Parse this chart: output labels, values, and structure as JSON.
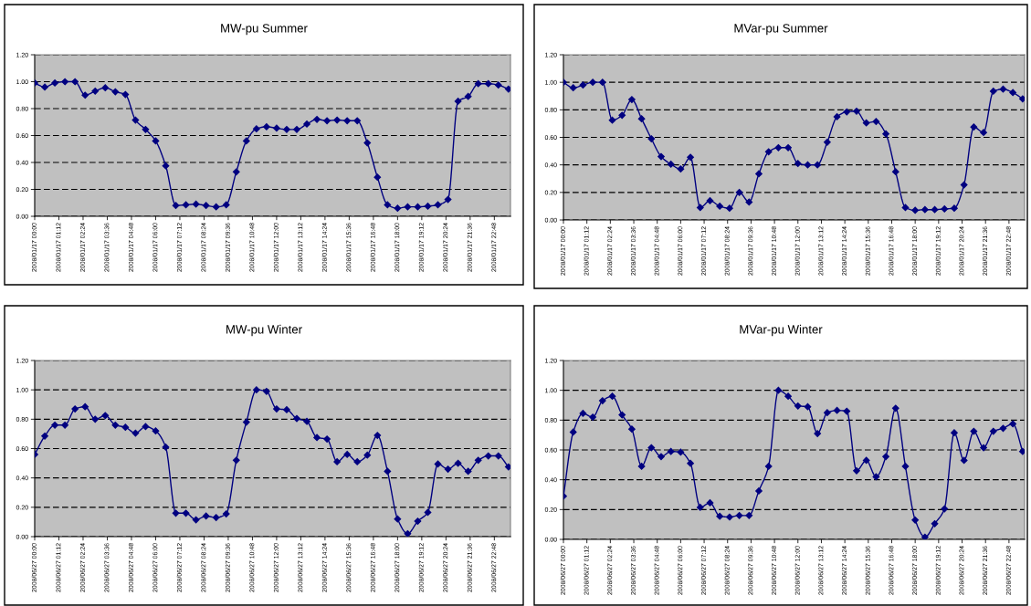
{
  "chart_data": [
    {
      "type": "line",
      "title": "MW-pu Summer",
      "grid": "y",
      "marker": "diamond",
      "x": [
        "2008-01-17T00:00",
        "2008-01-17T00:30",
        "2008-01-17T01:00",
        "2008-01-17T01:30",
        "2008-01-17T02:00",
        "2008-01-17T02:30",
        "2008-01-17T03:00",
        "2008-01-17T03:30",
        "2008-01-17T04:00",
        "2008-01-17T04:30",
        "2008-01-17T05:00",
        "2008-01-17T05:30",
        "2008-01-17T06:00",
        "2008-01-17T06:30",
        "2008-01-17T07:00",
        "2008-01-17T07:30",
        "2008-01-17T08:00",
        "2008-01-17T08:30",
        "2008-01-17T09:00",
        "2008-01-17T09:30",
        "2008-01-17T10:00",
        "2008-01-17T10:30",
        "2008-01-17T11:00",
        "2008-01-17T11:30",
        "2008-01-17T12:00",
        "2008-01-17T12:30",
        "2008-01-17T13:00",
        "2008-01-17T13:30",
        "2008-01-17T14:00",
        "2008-01-17T14:30",
        "2008-01-17T15:00",
        "2008-01-17T15:30",
        "2008-01-17T16:00",
        "2008-01-17T16:30",
        "2008-01-17T17:00",
        "2008-01-17T17:30",
        "2008-01-17T18:00",
        "2008-01-17T18:30",
        "2008-01-17T19:00",
        "2008-01-17T19:30",
        "2008-01-17T20:00",
        "2008-01-17T20:30",
        "2008-01-17T21:00",
        "2008-01-17T21:30",
        "2008-01-17T22:00",
        "2008-01-17T22:30",
        "2008-01-17T23:00",
        "2008-01-17T23:30"
      ],
      "xlim": [
        "2008-01-17T00:00",
        "2008-01-17T23:36"
      ],
      "xticks": [
        {
          "value": "2008-01-17T00:00",
          "label": "2008/01/17 00:00"
        },
        {
          "value": "2008-01-17T01:12",
          "label": "2008/01/17 01:12"
        },
        {
          "value": "2008-01-17T02:24",
          "label": "2008/01/17 02:24"
        },
        {
          "value": "2008-01-17T03:36",
          "label": "2008/01/17 03:36"
        },
        {
          "value": "2008-01-17T04:48",
          "label": "2008/01/17 04:48"
        },
        {
          "value": "2008-01-17T06:00",
          "label": "2008/01/17 06:00"
        },
        {
          "value": "2008-01-17T07:12",
          "label": "2008/01/17 07:12"
        },
        {
          "value": "2008-01-17T08:24",
          "label": "2008/01/17 08:24"
        },
        {
          "value": "2008-01-17T09:36",
          "label": "2008/01/17 09:36"
        },
        {
          "value": "2008-01-17T10:48",
          "label": "2008/01/17 10:48"
        },
        {
          "value": "2008-01-17T12:00",
          "label": "2008/01/17 12:00"
        },
        {
          "value": "2008-01-17T13:12",
          "label": "2008/01/17 13:12"
        },
        {
          "value": "2008-01-17T14:24",
          "label": "2008/01/17 14:24"
        },
        {
          "value": "2008-01-17T15:36",
          "label": "2008/01/17 15:36"
        },
        {
          "value": "2008-01-17T16:48",
          "label": "2008/01/17 16:48"
        },
        {
          "value": "2008-01-17T18:00",
          "label": "2008/01/17 18:00"
        },
        {
          "value": "2008-01-17T19:12",
          "label": "2008/01/17 19:12"
        },
        {
          "value": "2008-01-17T20:24",
          "label": "2008/01/17 20:24"
        },
        {
          "value": "2008-01-17T21:36",
          "label": "2008/01/17 21:36"
        },
        {
          "value": "2008-01-17T22:48",
          "label": "2008/01/17 22:48"
        }
      ],
      "ylim": [
        0,
        1.2
      ],
      "yticks": [
        {
          "value": 0,
          "label": "0.00"
        },
        {
          "value": 0.2,
          "label": "0.20"
        },
        {
          "value": 0.4,
          "label": "0.40"
        },
        {
          "value": 0.6,
          "label": "0.60"
        },
        {
          "value": 0.8,
          "label": "0.80"
        },
        {
          "value": 1,
          "label": "1.00"
        },
        {
          "value": 1.2,
          "label": "1.20"
        }
      ],
      "series": [
        {
          "color": "#000080",
          "values": [
            0.99,
            0.96,
            0.99,
            1.0,
            1.0,
            0.9,
            0.93,
            0.955,
            0.925,
            0.905,
            0.715,
            0.645,
            0.56,
            0.375,
            0.08,
            0.085,
            0.09,
            0.08,
            0.07,
            0.085,
            0.33,
            0.56,
            0.65,
            0.665,
            0.655,
            0.645,
            0.645,
            0.685,
            0.72,
            0.71,
            0.715,
            0.71,
            0.71,
            0.545,
            0.29,
            0.085,
            0.06,
            0.07,
            0.07,
            0.075,
            0.085,
            0.125,
            0.855,
            0.89,
            0.985,
            0.985,
            0.975,
            0.945
          ]
        }
      ]
    },
    {
      "type": "line",
      "title": "MVar-pu Summer",
      "grid": "y",
      "marker": "diamond",
      "x": [
        "2008-01-17T00:00",
        "2008-01-17T00:30",
        "2008-01-17T01:00",
        "2008-01-17T01:30",
        "2008-01-17T02:00",
        "2008-01-17T02:30",
        "2008-01-17T03:00",
        "2008-01-17T03:30",
        "2008-01-17T04:00",
        "2008-01-17T04:30",
        "2008-01-17T05:00",
        "2008-01-17T05:30",
        "2008-01-17T06:00",
        "2008-01-17T06:30",
        "2008-01-17T07:00",
        "2008-01-17T07:30",
        "2008-01-17T08:00",
        "2008-01-17T08:30",
        "2008-01-17T09:00",
        "2008-01-17T09:30",
        "2008-01-17T10:00",
        "2008-01-17T10:30",
        "2008-01-17T11:00",
        "2008-01-17T11:30",
        "2008-01-17T12:00",
        "2008-01-17T12:30",
        "2008-01-17T13:00",
        "2008-01-17T13:30",
        "2008-01-17T14:00",
        "2008-01-17T14:30",
        "2008-01-17T15:00",
        "2008-01-17T15:30",
        "2008-01-17T16:00",
        "2008-01-17T16:30",
        "2008-01-17T17:00",
        "2008-01-17T17:30",
        "2008-01-17T18:00",
        "2008-01-17T18:30",
        "2008-01-17T19:00",
        "2008-01-17T19:30",
        "2008-01-17T20:00",
        "2008-01-17T20:30",
        "2008-01-17T21:00",
        "2008-01-17T21:30",
        "2008-01-17T22:00",
        "2008-01-17T22:30",
        "2008-01-17T23:00",
        "2008-01-17T23:30"
      ],
      "xlim": [
        "2008-01-17T00:00",
        "2008-01-17T23:36"
      ],
      "xticks": [
        {
          "value": "2008-01-17T00:00",
          "label": "2008/01/17 00:00"
        },
        {
          "value": "2008-01-17T01:12",
          "label": "2008/01/17 01:12"
        },
        {
          "value": "2008-01-17T02:24",
          "label": "2008/01/17 02:24"
        },
        {
          "value": "2008-01-17T03:36",
          "label": "2008/01/17 03:36"
        },
        {
          "value": "2008-01-17T04:48",
          "label": "2008/01/17 04:48"
        },
        {
          "value": "2008-01-17T06:00",
          "label": "2008/01/17 06:00"
        },
        {
          "value": "2008-01-17T07:12",
          "label": "2008/01/17 07:12"
        },
        {
          "value": "2008-01-17T08:24",
          "label": "2008/01/17 08:24"
        },
        {
          "value": "2008-01-17T09:36",
          "label": "2008/01/17 09:36"
        },
        {
          "value": "2008-01-17T10:48",
          "label": "2008/01/17 10:48"
        },
        {
          "value": "2008-01-17T12:00",
          "label": "2008/01/17 12:00"
        },
        {
          "value": "2008-01-17T13:12",
          "label": "2008/01/17 13:12"
        },
        {
          "value": "2008-01-17T14:24",
          "label": "2008/01/17 14:24"
        },
        {
          "value": "2008-01-17T15:36",
          "label": "2008/01/17 15:36"
        },
        {
          "value": "2008-01-17T16:48",
          "label": "2008/01/17 16:48"
        },
        {
          "value": "2008-01-17T18:00",
          "label": "2008/01/17 18:00"
        },
        {
          "value": "2008-01-17T19:12",
          "label": "2008/01/17 19:12"
        },
        {
          "value": "2008-01-17T20:24",
          "label": "2008/01/17 20:24"
        },
        {
          "value": "2008-01-17T21:36",
          "label": "2008/01/17 21:36"
        },
        {
          "value": "2008-01-17T22:48",
          "label": "2008/01/17 22:48"
        }
      ],
      "ylim": [
        0,
        1.2
      ],
      "yticks": [
        {
          "value": 0,
          "label": "0.00"
        },
        {
          "value": 0.2,
          "label": "0.20"
        },
        {
          "value": 0.4,
          "label": "0.40"
        },
        {
          "value": 0.6,
          "label": "0.60"
        },
        {
          "value": 0.8,
          "label": "0.80"
        },
        {
          "value": 1,
          "label": "1.00"
        },
        {
          "value": 1.2,
          "label": "1.20"
        }
      ],
      "series": [
        {
          "color": "#000080",
          "values": [
            1.0,
            0.96,
            0.98,
            1.0,
            1.0,
            0.725,
            0.76,
            0.875,
            0.735,
            0.59,
            0.46,
            0.405,
            0.37,
            0.455,
            0.09,
            0.14,
            0.1,
            0.085,
            0.2,
            0.13,
            0.335,
            0.495,
            0.525,
            0.525,
            0.41,
            0.4,
            0.4,
            0.565,
            0.75,
            0.785,
            0.79,
            0.705,
            0.715,
            0.625,
            0.35,
            0.09,
            0.07,
            0.075,
            0.075,
            0.08,
            0.085,
            0.255,
            0.675,
            0.635,
            0.935,
            0.95,
            0.925,
            0.88
          ]
        }
      ]
    },
    {
      "type": "line",
      "title": "MW-pu Winter",
      "grid": "y",
      "marker": "diamond",
      "x": [
        "2008-06-27T00:00",
        "2008-06-27T00:30",
        "2008-06-27T01:00",
        "2008-06-27T01:30",
        "2008-06-27T02:00",
        "2008-06-27T02:30",
        "2008-06-27T03:00",
        "2008-06-27T03:30",
        "2008-06-27T04:00",
        "2008-06-27T04:30",
        "2008-06-27T05:00",
        "2008-06-27T05:30",
        "2008-06-27T06:00",
        "2008-06-27T06:30",
        "2008-06-27T07:00",
        "2008-06-27T07:30",
        "2008-06-27T08:00",
        "2008-06-27T08:30",
        "2008-06-27T09:00",
        "2008-06-27T09:30",
        "2008-06-27T10:00",
        "2008-06-27T10:30",
        "2008-06-27T11:00",
        "2008-06-27T11:30",
        "2008-06-27T12:00",
        "2008-06-27T12:30",
        "2008-06-27T13:00",
        "2008-06-27T13:30",
        "2008-06-27T14:00",
        "2008-06-27T14:30",
        "2008-06-27T15:00",
        "2008-06-27T15:30",
        "2008-06-27T16:00",
        "2008-06-27T16:30",
        "2008-06-27T17:00",
        "2008-06-27T17:30",
        "2008-06-27T18:00",
        "2008-06-27T18:30",
        "2008-06-27T19:00",
        "2008-06-27T19:30",
        "2008-06-27T20:00",
        "2008-06-27T20:30",
        "2008-06-27T21:00",
        "2008-06-27T21:30",
        "2008-06-27T22:00",
        "2008-06-27T22:30",
        "2008-06-27T23:00",
        "2008-06-27T23:30"
      ],
      "xlim": [
        "2008-06-27T00:00",
        "2008-06-27T23:36"
      ],
      "xticks": [
        {
          "value": "2008-06-27T00:00",
          "label": "2008/06/27 00:00"
        },
        {
          "value": "2008-06-27T01:12",
          "label": "2008/06/27 01:12"
        },
        {
          "value": "2008-06-27T02:24",
          "label": "2008/06/27 02:24"
        },
        {
          "value": "2008-06-27T03:36",
          "label": "2008/06/27 03:36"
        },
        {
          "value": "2008-06-27T04:48",
          "label": "2008/06/27 04:48"
        },
        {
          "value": "2008-06-27T06:00",
          "label": "2008/06/27 06:00"
        },
        {
          "value": "2008-06-27T07:12",
          "label": "2008/06/27 07:12"
        },
        {
          "value": "2008-06-27T08:24",
          "label": "2008/06/27 08:24"
        },
        {
          "value": "2008-06-27T09:36",
          "label": "2008/06/27 09:36"
        },
        {
          "value": "2008-06-27T10:48",
          "label": "2008/06/27 10:48"
        },
        {
          "value": "2008-06-27T12:00",
          "label": "2008/06/27 12:00"
        },
        {
          "value": "2008-06-27T13:12",
          "label": "2008/06/27 13:12"
        },
        {
          "value": "2008-06-27T14:24",
          "label": "2008/06/27 14:24"
        },
        {
          "value": "2008-06-27T15:36",
          "label": "2008/06/27 15:36"
        },
        {
          "value": "2008-06-27T16:48",
          "label": "2008/06/27 16:48"
        },
        {
          "value": "2008-06-27T18:00",
          "label": "2008/06/27 18:00"
        },
        {
          "value": "2008-06-27T19:12",
          "label": "2008/06/27 19:12"
        },
        {
          "value": "2008-06-27T20:24",
          "label": "2008/06/27 20:24"
        },
        {
          "value": "2008-06-27T21:36",
          "label": "2008/06/27 21:36"
        },
        {
          "value": "2008-06-27T22:48",
          "label": "2008/06/27 22:48"
        }
      ],
      "ylim": [
        0,
        1.2
      ],
      "yticks": [
        {
          "value": 0,
          "label": "0.00"
        },
        {
          "value": 0.2,
          "label": "0.20"
        },
        {
          "value": 0.4,
          "label": "0.40"
        },
        {
          "value": 0.6,
          "label": "0.60"
        },
        {
          "value": 0.8,
          "label": "0.80"
        },
        {
          "value": 1,
          "label": "1.00"
        },
        {
          "value": 1.2,
          "label": "1.20"
        }
      ],
      "series": [
        {
          "color": "#000080",
          "values": [
            0.56,
            0.685,
            0.76,
            0.76,
            0.87,
            0.885,
            0.8,
            0.825,
            0.76,
            0.745,
            0.705,
            0.75,
            0.72,
            0.61,
            0.16,
            0.16,
            0.115,
            0.14,
            0.13,
            0.155,
            0.52,
            0.78,
            1.0,
            0.99,
            0.87,
            0.865,
            0.805,
            0.785,
            0.675,
            0.665,
            0.51,
            0.56,
            0.51,
            0.555,
            0.69,
            0.445,
            0.12,
            0.02,
            0.105,
            0.165,
            0.495,
            0.46,
            0.5,
            0.445,
            0.52,
            0.55,
            0.55,
            0.475
          ]
        }
      ]
    },
    {
      "type": "line",
      "title": "MVar-pu Winter",
      "grid": "y",
      "marker": "diamond",
      "x": [
        "2008-06-27T00:00",
        "2008-06-27T00:30",
        "2008-06-27T01:00",
        "2008-06-27T01:30",
        "2008-06-27T02:00",
        "2008-06-27T02:30",
        "2008-06-27T03:00",
        "2008-06-27T03:30",
        "2008-06-27T04:00",
        "2008-06-27T04:30",
        "2008-06-27T05:00",
        "2008-06-27T05:30",
        "2008-06-27T06:00",
        "2008-06-27T06:30",
        "2008-06-27T07:00",
        "2008-06-27T07:30",
        "2008-06-27T08:00",
        "2008-06-27T08:30",
        "2008-06-27T09:00",
        "2008-06-27T09:30",
        "2008-06-27T10:00",
        "2008-06-27T10:30",
        "2008-06-27T11:00",
        "2008-06-27T11:30",
        "2008-06-27T12:00",
        "2008-06-27T12:30",
        "2008-06-27T13:00",
        "2008-06-27T13:30",
        "2008-06-27T14:00",
        "2008-06-27T14:30",
        "2008-06-27T15:00",
        "2008-06-27T15:30",
        "2008-06-27T16:00",
        "2008-06-27T16:30",
        "2008-06-27T17:00",
        "2008-06-27T17:30",
        "2008-06-27T18:00",
        "2008-06-27T18:30",
        "2008-06-27T19:00",
        "2008-06-27T19:30",
        "2008-06-27T20:00",
        "2008-06-27T20:30",
        "2008-06-27T21:00",
        "2008-06-27T21:30",
        "2008-06-27T22:00",
        "2008-06-27T22:30",
        "2008-06-27T23:00",
        "2008-06-27T23:30"
      ],
      "xlim": [
        "2008-06-27T00:00",
        "2008-06-27T23:36"
      ],
      "xticks": [
        {
          "value": "2008-06-27T00:00",
          "label": "2008/06/27 00:00"
        },
        {
          "value": "2008-06-27T01:12",
          "label": "2008/06/27 01:12"
        },
        {
          "value": "2008-06-27T02:24",
          "label": "2008/06/27 02:24"
        },
        {
          "value": "2008-06-27T03:36",
          "label": "2008/06/27 03:36"
        },
        {
          "value": "2008-06-27T04:48",
          "label": "2008/06/27 04:48"
        },
        {
          "value": "2008-06-27T06:00",
          "label": "2008/06/27 06:00"
        },
        {
          "value": "2008-06-27T07:12",
          "label": "2008/06/27 07:12"
        },
        {
          "value": "2008-06-27T08:24",
          "label": "2008/06/27 08:24"
        },
        {
          "value": "2008-06-27T09:36",
          "label": "2008/06/27 09:36"
        },
        {
          "value": "2008-06-27T10:48",
          "label": "2008/06/27 10:48"
        },
        {
          "value": "2008-06-27T12:00",
          "label": "2008/06/27 12:00"
        },
        {
          "value": "2008-06-27T13:12",
          "label": "2008/06/27 13:12"
        },
        {
          "value": "2008-06-27T14:24",
          "label": "2008/06/27 14:24"
        },
        {
          "value": "2008-06-27T15:36",
          "label": "2008/06/27 15:36"
        },
        {
          "value": "2008-06-27T16:48",
          "label": "2008/06/27 16:48"
        },
        {
          "value": "2008-06-27T18:00",
          "label": "2008/06/27 18:00"
        },
        {
          "value": "2008-06-27T19:12",
          "label": "2008/06/27 19:12"
        },
        {
          "value": "2008-06-27T20:24",
          "label": "2008/06/27 20:24"
        },
        {
          "value": "2008-06-27T21:36",
          "label": "2008/06/27 21:36"
        },
        {
          "value": "2008-06-27T22:48",
          "label": "2008/06/27 22:48"
        }
      ],
      "ylim": [
        0,
        1.2
      ],
      "yticks": [
        {
          "value": 0,
          "label": "0.00"
        },
        {
          "value": 0.2,
          "label": "0.20"
        },
        {
          "value": 0.4,
          "label": "0.40"
        },
        {
          "value": 0.6,
          "label": "0.60"
        },
        {
          "value": 0.8,
          "label": "0.80"
        },
        {
          "value": 1,
          "label": "1.00"
        },
        {
          "value": 1.2,
          "label": "1.20"
        }
      ],
      "series": [
        {
          "color": "#000080",
          "values": [
            0.29,
            0.72,
            0.845,
            0.82,
            0.93,
            0.96,
            0.835,
            0.74,
            0.49,
            0.615,
            0.555,
            0.59,
            0.585,
            0.51,
            0.215,
            0.245,
            0.155,
            0.15,
            0.16,
            0.16,
            0.325,
            0.49,
            1.0,
            0.96,
            0.895,
            0.89,
            0.71,
            0.85,
            0.865,
            0.86,
            0.46,
            0.53,
            0.42,
            0.555,
            0.88,
            0.49,
            0.13,
            0.015,
            0.105,
            0.205,
            0.715,
            0.53,
            0.725,
            0.615,
            0.725,
            0.745,
            0.775,
            0.59
          ]
        }
      ]
    }
  ]
}
